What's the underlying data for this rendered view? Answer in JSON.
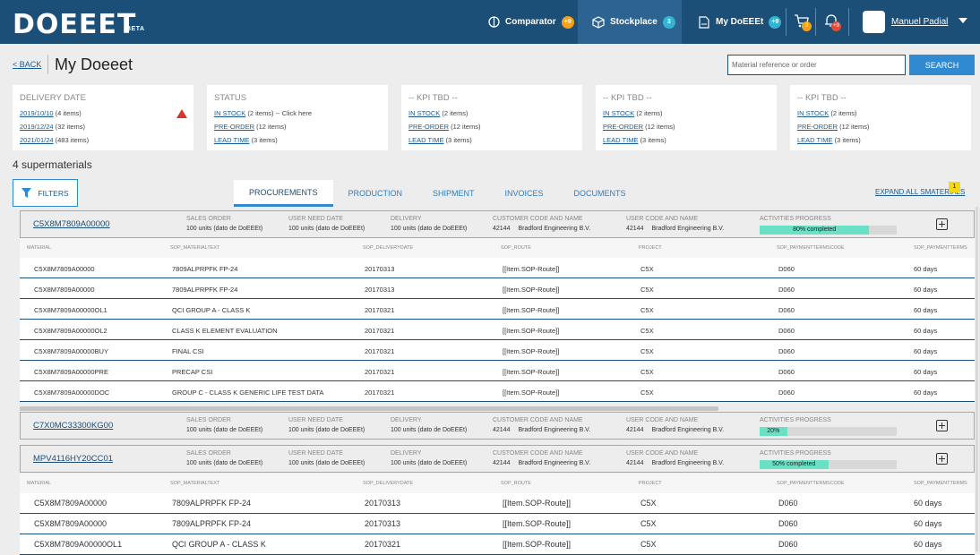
{
  "nav": {
    "logo": "DOEEET",
    "beta": "BETA",
    "tabs": [
      {
        "label": "Comparator",
        "badge": "+9",
        "icon": "compass-icon"
      },
      {
        "label": "Stockplace",
        "badge": "3",
        "icon": "box-icon"
      },
      {
        "label": "My DoEEEt",
        "badge": "+9",
        "icon": "document-icon"
      }
    ],
    "cart_badge": "3",
    "bell_badge": "+9",
    "user_name": "Manuel Padial",
    "colors": {
      "bar": "#1b4f78",
      "active": "#2d6390",
      "orange": "#f4a21b",
      "teal": "#34b3d3",
      "red": "#e34a35"
    }
  },
  "header": {
    "back": "< BACK",
    "title": "My Doeeet",
    "search_placeholder": "Material reference or order",
    "search_button": "SEARCH"
  },
  "cards": [
    {
      "title": "DELIVERY DATE",
      "warning": true,
      "rows": [
        {
          "link": "2019/10/10",
          "text": "(4 items)"
        },
        {
          "link": "2019/12/24",
          "text": "(32 items)"
        },
        {
          "link": "2021/01/24",
          "text": "(483 items)"
        }
      ]
    },
    {
      "title": "STATUS",
      "rows": [
        {
          "link": "IN STOCK",
          "text": "(2 items) -- Click here"
        },
        {
          "link": "PRE-ORDER",
          "text": "(12 items)"
        },
        {
          "link": "LEAD TIME",
          "text": "(3 items)"
        }
      ]
    },
    {
      "title": "-- KPI TBD --",
      "rows": [
        {
          "link": "IN STOCK",
          "text": "(2 items)"
        },
        {
          "link": "PRE-ORDER",
          "text": "(12 items)"
        },
        {
          "link": "LEAD TIME",
          "text": "(3 items)"
        }
      ]
    },
    {
      "title": "-- KPI TBD --",
      "rows": [
        {
          "link": "IN STOCK",
          "text": "(2 items)"
        },
        {
          "link": "PRE-ORDER",
          "text": "(12 items)"
        },
        {
          "link": "LEAD TIME",
          "text": "(3 items)"
        }
      ]
    },
    {
      "title": "-- KPI TBD --",
      "rows": [
        {
          "link": "IN STOCK",
          "text": "(2 items)"
        },
        {
          "link": "PRE-ORDER",
          "text": "(12 items)"
        },
        {
          "link": "LEAD TIME",
          "text": "(3 items)"
        }
      ]
    }
  ],
  "count_label": "4 supermaterials",
  "filters_label": "FILTERS",
  "tabs": [
    "PROCUREMENTS",
    "PRODUCTION",
    "SHIPMENT",
    "INVOICES",
    "DOCUMENTS"
  ],
  "expand_label": "EXPAND ALL SMATERIALS",
  "expand_badge": "1",
  "sm_headers": {
    "sales": "SALES ORDER",
    "need": "USER NEED DATE",
    "delivery": "DELIVERY",
    "customer": "CUSTOMER CODE AND NAME",
    "user": "USER CODE AND NAME",
    "progress": "ACTIVITIES PROGRESS"
  },
  "sm_common": {
    "units": "100 units (dato de DoEEEt)",
    "code": "42144",
    "name": "Bradford Engineering B.V."
  },
  "supermaterials": [
    {
      "code": "C5X8M7809A00000",
      "progress": 0.8,
      "progress_label": "80% completed"
    },
    {
      "code": "C7X0MC33300KG00",
      "progress": 0.2,
      "progress_label": "20%"
    },
    {
      "code": "MPV4116HY20CC01",
      "progress": 0.5,
      "progress_label": "50% completed"
    }
  ],
  "table_headers": [
    "MATERIAL",
    "SOP_MATERIALTEXT",
    "SOP_DELIVERYDATE",
    "SOP_ROUTE",
    "PROJECT",
    "SOP_PAYMENTTERMSCODE",
    "SOP_PAYMENTTERMS"
  ],
  "rows": [
    [
      "C5X8M7809A00000",
      "7809ALPRPFK FP-24",
      "20170313",
      "[[Item.SOP-Route]]",
      "C5X",
      "D060",
      "60 days"
    ],
    [
      "C5X8M7809A00000",
      "7809ALPRPFK FP-24",
      "20170313",
      "[[Item.SOP-Route]]",
      "C5X",
      "D060",
      "60 days"
    ],
    [
      "C5X8M7809A00000OL1",
      "QCI GROUP A - CLASS K",
      "20170321",
      "[[Item.SOP-Route]]",
      "C5X",
      "D060",
      "60 days"
    ],
    [
      "C5X8M7809A00000OL2",
      "CLASS K ELEMENT EVALUATION",
      "20170321",
      "[[Item.SOP-Route]]",
      "C5X",
      "D060",
      "60 days"
    ],
    [
      "C5X8M7809A00000BUY",
      "FINAL CSI",
      "20170321",
      "[[Item.SOP-Route]]",
      "C5X",
      "D060",
      "60 days"
    ],
    [
      "C5X8M7809A00000PRE",
      "PRECAP CSI",
      "20170321",
      "[[Item.SOP-Route]]",
      "C5X",
      "D060",
      "60 days"
    ],
    [
      "C5X8M7809A00000DOC",
      "GROUP C - CLASS K GENERIC LIFE TEST DATA",
      "20170321",
      "[[Item.SOP-Route]]",
      "C5X",
      "D060",
      "60 days"
    ]
  ],
  "rows2": [
    [
      "C5X8M7809A00000",
      "7809ALPRPFK FP-24",
      "20170313",
      "[[Item.SOP-Route]]",
      "C5X",
      "D060",
      "60 days"
    ],
    [
      "C5X8M7809A00000",
      "7809ALPRPFK FP-24",
      "20170313",
      "[[Item.SOP-Route]]",
      "C5X",
      "D060",
      "60 days"
    ],
    [
      "C5X8M7809A00000OL1",
      "QCI GROUP A - CLASS K",
      "20170321",
      "[[Item.SOP-Route]]",
      "C5X",
      "D060",
      "60 days"
    ]
  ]
}
